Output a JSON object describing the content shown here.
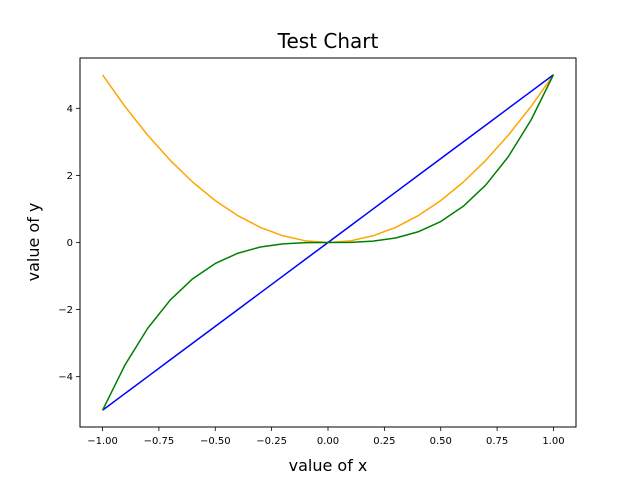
{
  "chart_data": {
    "type": "line",
    "title": "Test Chart",
    "xlabel": "value of x",
    "ylabel": "value of y",
    "xlim": [
      -1.1,
      1.1
    ],
    "ylim": [
      -5.5,
      5.5
    ],
    "grid": false,
    "xticks": [
      -1.0,
      -0.75,
      -0.5,
      -0.25,
      0.0,
      0.25,
      0.5,
      0.75,
      1.0
    ],
    "xtick_labels": [
      "−1.00",
      "−0.75",
      "−0.50",
      "−0.25",
      "0.00",
      "0.25",
      "0.50",
      "0.75",
      "1.00"
    ],
    "yticks": [
      -4,
      -2,
      0,
      2,
      4
    ],
    "ytick_labels": [
      "−4",
      "−2",
      "0",
      "2",
      "4"
    ],
    "x": [
      -1.0,
      -0.9,
      -0.8,
      -0.7,
      -0.6,
      -0.5,
      -0.4,
      -0.3,
      -0.2,
      -0.1,
      0.0,
      0.1,
      0.2,
      0.3,
      0.4,
      0.5,
      0.6,
      0.7,
      0.8,
      0.9,
      1.0
    ],
    "series": [
      {
        "color": "#ffa500",
        "values": [
          5.0,
          4.05,
          3.2,
          2.45,
          1.8,
          1.25,
          0.8,
          0.45,
          0.2,
          0.05,
          0.0,
          0.05,
          0.2,
          0.45,
          0.8,
          1.25,
          1.8,
          2.45,
          3.2,
          4.05,
          5.0
        ]
      },
      {
        "color": "#0000ff",
        "values": [
          -5.0,
          -4.5,
          -4.0,
          -3.5,
          -3.0,
          -2.5,
          -2.0,
          -1.5,
          -1.0,
          -0.5,
          0.0,
          0.5,
          1.0,
          1.5,
          2.0,
          2.5,
          3.0,
          3.5,
          4.0,
          4.5,
          5.0
        ]
      },
      {
        "color": "#008000",
        "values": [
          -5.0,
          -3.645,
          -2.56,
          -1.715,
          -1.08,
          -0.625,
          -0.32,
          -0.135,
          -0.04,
          -0.005,
          0.0,
          0.005,
          0.04,
          0.135,
          0.32,
          0.625,
          1.08,
          1.715,
          2.56,
          3.645,
          5.0
        ]
      }
    ]
  }
}
